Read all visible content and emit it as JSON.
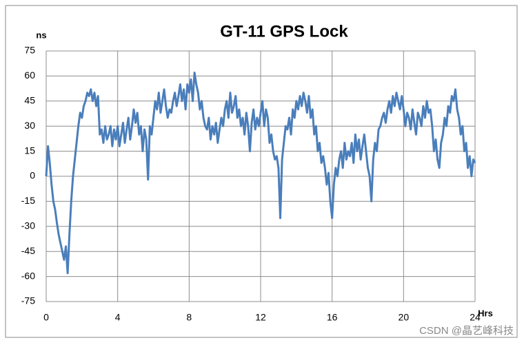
{
  "chart_data": {
    "type": "line",
    "title": "GT-11 GPS Lock",
    "y_label": "ns",
    "x_label": "Hrs",
    "watermark": "CSDN @晶艺峰科技",
    "xlim": [
      0,
      24
    ],
    "xticks": [
      0,
      4,
      8,
      12,
      16,
      20,
      24
    ],
    "ylim": [
      -75,
      75
    ],
    "yticks": [
      -75,
      -60,
      -45,
      -30,
      -15,
      0,
      15,
      30,
      45,
      60,
      75
    ],
    "grid": true,
    "x": [
      0,
      0.1,
      0.2,
      0.3,
      0.4,
      0.5,
      0.6,
      0.7,
      0.8,
      0.9,
      1,
      1.1,
      1.2,
      1.3,
      1.4,
      1.5,
      1.6,
      1.7,
      1.8,
      1.9,
      2,
      2.1,
      2.2,
      2.3,
      2.4,
      2.5,
      2.6,
      2.7,
      2.8,
      2.9,
      3,
      3.1,
      3.2,
      3.3,
      3.4,
      3.5,
      3.6,
      3.7,
      3.8,
      3.9,
      4,
      4.1,
      4.2,
      4.3,
      4.4,
      4.5,
      4.6,
      4.7,
      4.8,
      4.9,
      5,
      5.1,
      5.2,
      5.3,
      5.4,
      5.5,
      5.6,
      5.7,
      5.8,
      5.9,
      6,
      6.1,
      6.2,
      6.3,
      6.4,
      6.5,
      6.6,
      6.7,
      6.8,
      6.9,
      7,
      7.1,
      7.2,
      7.3,
      7.4,
      7.5,
      7.6,
      7.7,
      7.8,
      7.9,
      8,
      8.1,
      8.2,
      8.3,
      8.4,
      8.5,
      8.6,
      8.7,
      8.8,
      8.9,
      9,
      9.1,
      9.2,
      9.3,
      9.4,
      9.5,
      9.6,
      9.7,
      9.8,
      9.9,
      10,
      10.1,
      10.2,
      10.3,
      10.4,
      10.5,
      10.6,
      10.7,
      10.8,
      10.9,
      11,
      11.1,
      11.2,
      11.3,
      11.4,
      11.5,
      11.6,
      11.7,
      11.8,
      11.9,
      12,
      12.1,
      12.2,
      12.3,
      12.4,
      12.5,
      12.6,
      12.7,
      12.8,
      12.9,
      13,
      13.1,
      13.2,
      13.3,
      13.4,
      13.5,
      13.6,
      13.7,
      13.8,
      13.9,
      14,
      14.1,
      14.2,
      14.3,
      14.4,
      14.5,
      14.6,
      14.7,
      14.8,
      14.9,
      15,
      15.1,
      15.2,
      15.3,
      15.4,
      15.5,
      15.6,
      15.7,
      15.8,
      15.9,
      16,
      16.1,
      16.2,
      16.3,
      16.4,
      16.5,
      16.6,
      16.7,
      16.8,
      16.9,
      17,
      17.1,
      17.2,
      17.3,
      17.4,
      17.5,
      17.6,
      17.7,
      17.8,
      17.9,
      18,
      18.1,
      18.2,
      18.3,
      18.4,
      18.5,
      18.6,
      18.7,
      18.8,
      18.9,
      19,
      19.1,
      19.2,
      19.3,
      19.4,
      19.5,
      19.6,
      19.7,
      19.8,
      19.9,
      20,
      20.1,
      20.2,
      20.3,
      20.4,
      20.5,
      20.6,
      20.7,
      20.8,
      20.9,
      21,
      21.1,
      21.2,
      21.3,
      21.4,
      21.5,
      21.6,
      21.7,
      21.8,
      21.9,
      22,
      22.1,
      22.2,
      22.3,
      22.4,
      22.5,
      22.6,
      22.7,
      22.8,
      22.9,
      23,
      23.1,
      23.2,
      23.3,
      23.4,
      23.5,
      23.6,
      23.7,
      23.8,
      23.9,
      24
    ],
    "series": [
      {
        "color": "#4a7ebb",
        "values": [
          0,
          18,
          8,
          -5,
          -15,
          -20,
          -28,
          -35,
          -40,
          -45,
          -50,
          -42,
          -58,
          -35,
          -15,
          0,
          10,
          20,
          30,
          38,
          35,
          42,
          45,
          50,
          48,
          52,
          45,
          50,
          42,
          48,
          25,
          28,
          20,
          30,
          22,
          25,
          30,
          18,
          28,
          22,
          30,
          18,
          25,
          32,
          20,
          28,
          35,
          22,
          30,
          40,
          32,
          38,
          25,
          30,
          15,
          28,
          22,
          -2,
          30,
          25,
          35,
          45,
          40,
          50,
          38,
          45,
          52,
          42,
          35,
          40,
          38,
          45,
          50,
          42,
          48,
          55,
          45,
          52,
          40,
          55,
          50,
          58,
          45,
          62,
          55,
          50,
          40,
          45,
          35,
          30,
          28,
          35,
          22,
          30,
          25,
          32,
          20,
          28,
          35,
          30,
          40,
          45,
          35,
          50,
          38,
          42,
          48,
          35,
          40,
          30,
          35,
          25,
          38,
          30,
          15,
          32,
          40,
          28,
          35,
          30,
          38,
          45,
          30,
          40,
          35,
          20,
          25,
          15,
          10,
          12,
          5,
          -25,
          10,
          20,
          30,
          28,
          35,
          25,
          40,
          35,
          45,
          40,
          48,
          42,
          50,
          45,
          38,
          48,
          35,
          40,
          25,
          30,
          15,
          20,
          8,
          12,
          5,
          -5,
          2,
          -15,
          -25,
          -5,
          5,
          0,
          10,
          15,
          5,
          20,
          10,
          15,
          12,
          20,
          8,
          25,
          15,
          22,
          10,
          18,
          25,
          15,
          5,
          0,
          -15,
          10,
          20,
          15,
          28,
          30,
          35,
          38,
          32,
          40,
          45,
          38,
          48,
          42,
          50,
          45,
          40,
          48,
          40,
          30,
          38,
          35,
          28,
          40,
          32,
          25,
          38,
          35,
          30,
          42,
          35,
          45,
          38,
          40,
          30,
          15,
          22,
          10,
          5,
          20,
          25,
          35,
          30,
          42,
          38,
          48,
          45,
          52,
          40,
          35,
          25,
          30,
          15,
          20,
          5,
          12,
          0,
          10,
          8
        ]
      }
    ]
  }
}
